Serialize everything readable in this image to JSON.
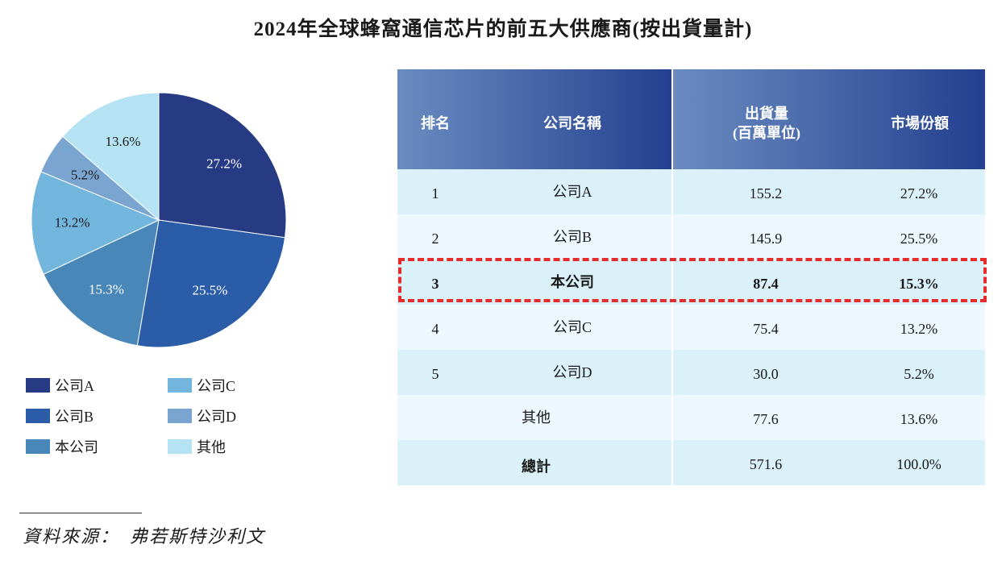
{
  "chart_data": [
    {
      "type": "pie",
      "title": "2024年全球蜂窩通信芯片的前五大供應商(按出貨量計)",
      "categories": [
        "公司A",
        "公司B",
        "本公司",
        "公司C",
        "公司D",
        "其他"
      ],
      "values": [
        27.2,
        25.5,
        15.3,
        13.2,
        5.2,
        13.6
      ],
      "labels": [
        "27.2%",
        "25.5%",
        "15.3%",
        "13.2%",
        "5.2%",
        "13.6%"
      ],
      "colors": [
        "#273b85",
        "#2b5ca8",
        "#4a87b9",
        "#72b6de",
        "#7aa5d0",
        "#b6e3f4"
      ],
      "label_colors": [
        "#ffffff",
        "#ffffff",
        "#ffffff",
        "#1a1a1a",
        "#1a1a1a",
        "#1a1a1a"
      ],
      "start": "top",
      "direction": "clockwise",
      "legend": "bottom"
    },
    {
      "type": "table",
      "headers": [
        "排名",
        "公司名稱",
        "出貨量",
        "(百萬單位)",
        "市場份額"
      ],
      "rows": [
        {
          "rank": "1",
          "name": "公司A",
          "volume": "155.2",
          "share": "27.2%"
        },
        {
          "rank": "2",
          "name": "公司B",
          "volume": "145.9",
          "share": "25.5%"
        },
        {
          "rank": "3",
          "name": "本公司",
          "volume": "87.4",
          "share": "15.3%",
          "highlight": true
        },
        {
          "rank": "4",
          "name": "公司C",
          "volume": "75.4",
          "share": "13.2%"
        },
        {
          "rank": "5",
          "name": "公司D",
          "volume": "30.0",
          "share": "5.2%"
        },
        {
          "rank": "",
          "name": "其他",
          "volume": "77.6",
          "share": "13.6%"
        },
        {
          "rank": "",
          "name": "總計",
          "volume": "571.6",
          "share": "100.0%"
        }
      ]
    }
  ],
  "source": "資料來源：　弗若斯特沙利文"
}
